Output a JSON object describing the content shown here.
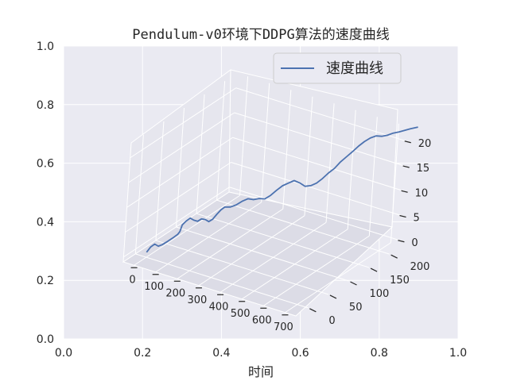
{
  "chart_data": {
    "type": "line",
    "projection": "3d",
    "title": "Pendulum-v0环境下DDPG算法的速度曲线",
    "xlabel": "时间",
    "ylabel": "",
    "legend": {
      "entries": [
        "速度曲线"
      ],
      "placement": "top-right"
    },
    "grid": true,
    "background_color": "#eaeaf2",
    "line_color": "#4c72b0",
    "axes2d": {
      "xlim": [
        0.0,
        1.0
      ],
      "ylim": [
        0.0,
        1.0
      ],
      "xticks": [
        "0.0",
        "0.2",
        "0.4",
        "0.6",
        "0.8",
        "1.0"
      ],
      "yticks": [
        "0.0",
        "0.2",
        "0.4",
        "0.6",
        "0.8",
        "1.0"
      ]
    },
    "axes3d": {
      "xlim": [
        -50,
        750
      ],
      "ylim": [
        -30,
        230
      ],
      "zlim": [
        -1,
        23
      ],
      "xticks": [
        "0",
        "100",
        "200",
        "300",
        "400",
        "500",
        "600",
        "700"
      ],
      "yticks": [
        "0",
        "50",
        "100",
        "150",
        "200"
      ],
      "zticks": [
        "0",
        "5",
        "10",
        "15",
        "20"
      ]
    },
    "series": [
      {
        "name": "速度曲线",
        "x": [
          0,
          10,
          20,
          30,
          40,
          55,
          70,
          80,
          85,
          90,
          100,
          110,
          120,
          130,
          140,
          150,
          160,
          170,
          180,
          190,
          200,
          215,
          230,
          245,
          260,
          275,
          290,
          305,
          320,
          335,
          350,
          365,
          380,
          395,
          410,
          425,
          440,
          455,
          470,
          485,
          500,
          515,
          530,
          545,
          560,
          575,
          590,
          605,
          620,
          635,
          650,
          665,
          680,
          700
        ],
        "y": [
          0,
          4,
          8,
          12,
          16,
          22,
          28,
          32,
          34,
          36,
          40,
          44,
          48,
          52,
          56,
          60,
          64,
          68,
          72,
          76,
          80,
          86,
          92,
          98,
          104,
          110,
          116,
          122,
          128,
          134,
          140,
          146,
          152,
          158,
          164,
          170,
          176,
          182,
          188,
          194,
          200,
          206,
          212,
          218,
          224,
          230,
          236,
          242,
          248,
          254,
          260,
          266,
          272,
          280
        ],
        "z": [
          0.0,
          1.0,
          1.5,
          1.0,
          1.2,
          1.8,
          2.5,
          3.0,
          3.5,
          4.8,
          5.5,
          6.0,
          5.5,
          5.2,
          5.6,
          5.4,
          4.9,
          5.3,
          6.2,
          7.0,
          7.5,
          7.4,
          7.7,
          8.3,
          8.7,
          8.4,
          8.5,
          8.3,
          8.9,
          9.8,
          10.6,
          11.0,
          11.4,
          10.8,
          10.0,
          10.0,
          10.4,
          11.2,
          12.2,
          13.0,
          14.2,
          15.1,
          16.0,
          17.0,
          17.8,
          18.4,
          18.7,
          18.5,
          18.6,
          18.9,
          19.0,
          19.2,
          19.4,
          19.6
        ]
      }
    ]
  }
}
